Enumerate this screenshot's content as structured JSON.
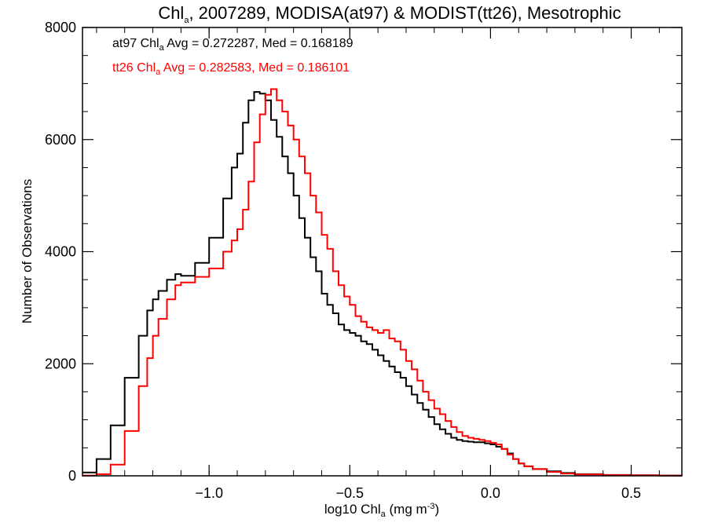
{
  "chart_data": {
    "type": "line",
    "step": true,
    "title": {
      "prefix": "Chl",
      "sub": "a",
      "suffix": ", 2007289, MODISA(at97) & MODIST(tt26), Mesotrophic"
    },
    "xlabel": {
      "prefix": "log10 Chl",
      "sub": "a",
      "suffix": " (mg m",
      "sup": "-3",
      "end": ")"
    },
    "ylabel": "Number of Observations",
    "xlim": [
      -1.45,
      0.68
    ],
    "ylim": [
      0,
      8000
    ],
    "xticks": [
      -1.0,
      -0.5,
      0.0,
      0.5
    ],
    "xtick_labels": [
      "−1.0",
      "−0.5",
      "0.0",
      "0.5"
    ],
    "yticks": [
      0,
      2000,
      4000,
      6000,
      8000
    ],
    "ytick_labels": [
      "0",
      "2000",
      "4000",
      "6000",
      "8000"
    ],
    "grid": false,
    "series": [
      {
        "name": "at97",
        "color": "#000000",
        "stats": {
          "prefix": "at97 Chl",
          "sub": "a",
          "suffix": " Avg = 0.272287, Med = 0.168189"
        },
        "x": [
          -1.45,
          -1.4,
          -1.35,
          -1.3,
          -1.25,
          -1.22,
          -1.2,
          -1.18,
          -1.15,
          -1.12,
          -1.1,
          -1.05,
          -1.0,
          -0.95,
          -0.92,
          -0.9,
          -0.88,
          -0.86,
          -0.84,
          -0.82,
          -0.8,
          -0.78,
          -0.76,
          -0.74,
          -0.72,
          -0.7,
          -0.68,
          -0.66,
          -0.64,
          -0.62,
          -0.6,
          -0.58,
          -0.56,
          -0.54,
          -0.52,
          -0.5,
          -0.48,
          -0.46,
          -0.44,
          -0.42,
          -0.4,
          -0.38,
          -0.36,
          -0.34,
          -0.32,
          -0.3,
          -0.28,
          -0.26,
          -0.24,
          -0.22,
          -0.2,
          -0.18,
          -0.16,
          -0.14,
          -0.12,
          -0.1,
          -0.08,
          -0.06,
          -0.04,
          -0.02,
          0.0,
          0.02,
          0.04,
          0.06,
          0.08,
          0.1,
          0.12,
          0.15,
          0.2,
          0.25,
          0.3,
          0.4,
          0.5,
          0.6,
          0.68
        ],
        "y": [
          60,
          300,
          900,
          1750,
          2500,
          2950,
          3150,
          3300,
          3500,
          3600,
          3570,
          3800,
          4250,
          4950,
          5500,
          5750,
          6300,
          6700,
          6850,
          6820,
          6700,
          6350,
          6050,
          5700,
          5400,
          5000,
          4600,
          4250,
          3900,
          3650,
          3250,
          3050,
          2900,
          2700,
          2600,
          2550,
          2500,
          2400,
          2350,
          2250,
          2150,
          2050,
          1950,
          1850,
          1750,
          1600,
          1450,
          1300,
          1180,
          1050,
          920,
          830,
          750,
          680,
          640,
          620,
          610,
          600,
          600,
          580,
          560,
          520,
          480,
          400,
          300,
          220,
          170,
          120,
          80,
          50,
          30,
          15,
          10,
          5,
          2
        ]
      },
      {
        "name": "tt26",
        "color": "#ff0000",
        "stats": {
          "prefix": "tt26 Chl",
          "sub": "a",
          "suffix": " Avg = 0.282583, Med = 0.186101"
        },
        "x": [
          -1.45,
          -1.4,
          -1.35,
          -1.3,
          -1.25,
          -1.22,
          -1.2,
          -1.18,
          -1.15,
          -1.12,
          -1.1,
          -1.05,
          -1.0,
          -0.95,
          -0.92,
          -0.9,
          -0.88,
          -0.86,
          -0.84,
          -0.82,
          -0.8,
          -0.78,
          -0.76,
          -0.74,
          -0.72,
          -0.7,
          -0.68,
          -0.66,
          -0.64,
          -0.62,
          -0.6,
          -0.58,
          -0.56,
          -0.54,
          -0.52,
          -0.5,
          -0.48,
          -0.46,
          -0.44,
          -0.42,
          -0.4,
          -0.38,
          -0.36,
          -0.34,
          -0.32,
          -0.3,
          -0.28,
          -0.26,
          -0.24,
          -0.22,
          -0.2,
          -0.18,
          -0.16,
          -0.14,
          -0.12,
          -0.1,
          -0.08,
          -0.06,
          -0.04,
          -0.02,
          0.0,
          0.02,
          0.04,
          0.06,
          0.08,
          0.1,
          0.12,
          0.15,
          0.2,
          0.25,
          0.3,
          0.4,
          0.5,
          0.6,
          0.68
        ],
        "y": [
          5,
          30,
          200,
          800,
          1600,
          2100,
          2500,
          2800,
          3150,
          3400,
          3450,
          3550,
          3700,
          4000,
          4200,
          4400,
          4750,
          5250,
          5950,
          6450,
          6800,
          6900,
          6700,
          6500,
          6250,
          6000,
          5700,
          5400,
          5000,
          4700,
          4300,
          4050,
          3650,
          3400,
          3200,
          3050,
          2850,
          2750,
          2650,
          2600,
          2550,
          2600,
          2450,
          2400,
          2250,
          2050,
          1900,
          1700,
          1500,
          1350,
          1200,
          1100,
          980,
          870,
          780,
          710,
          680,
          660,
          640,
          620,
          590,
          560,
          480,
          380,
          300,
          220,
          170,
          120,
          70,
          40,
          25,
          12,
          8,
          4,
          2
        ]
      }
    ]
  }
}
